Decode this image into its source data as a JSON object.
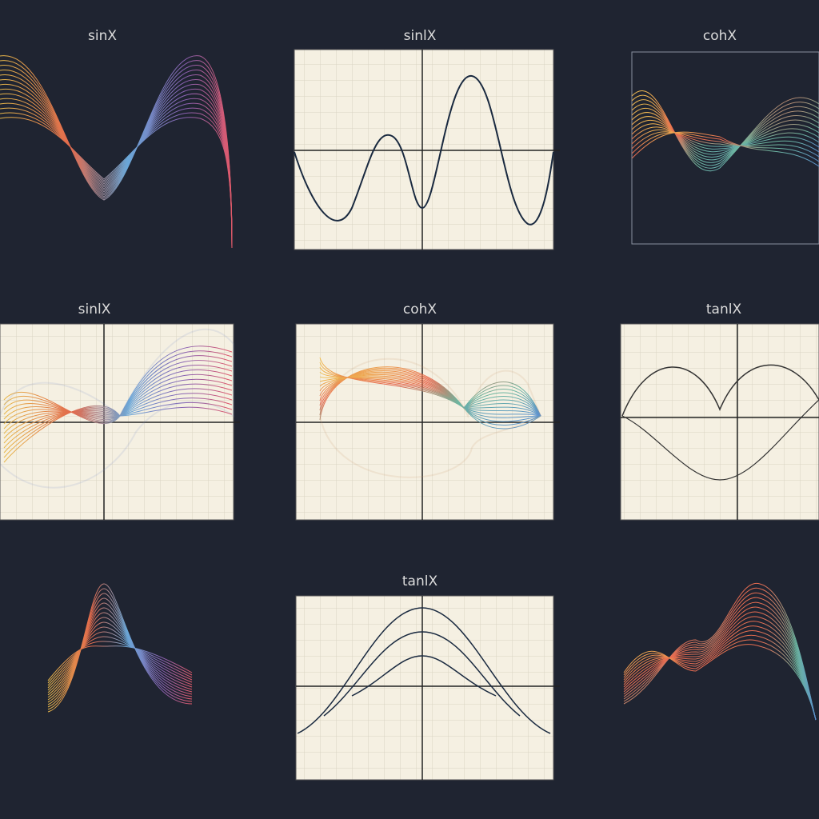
{
  "panels": [
    {
      "title": "sinX"
    },
    {
      "title": "sinlX"
    },
    {
      "title": "cohX"
    },
    {
      "title": "sinlX"
    },
    {
      "title": "cohX"
    },
    {
      "title": "tanlX"
    },
    {
      "title": "tanlX"
    }
  ]
}
